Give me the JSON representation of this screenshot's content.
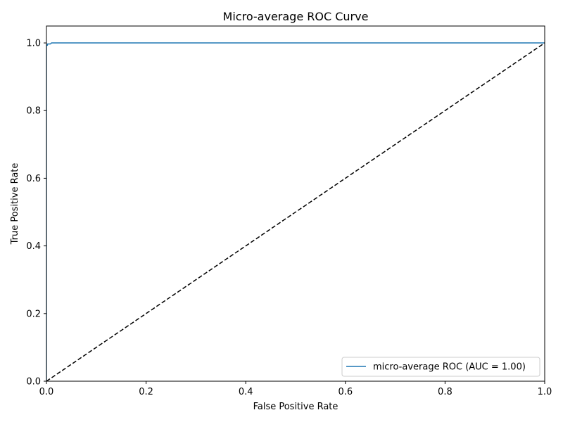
{
  "chart_data": {
    "type": "line",
    "title": "Micro-average ROC Curve",
    "xlabel": "False Positive Rate",
    "ylabel": "True Positive Rate",
    "xlim": [
      0.0,
      1.0
    ],
    "ylim": [
      0.0,
      1.05
    ],
    "xticks": [
      "0.0",
      "0.2",
      "0.4",
      "0.6",
      "0.8",
      "1.0"
    ],
    "yticks": [
      "0.0",
      "0.2",
      "0.4",
      "0.6",
      "0.8",
      "1.0"
    ],
    "grid": false,
    "legend_position": "lower-right",
    "series": [
      {
        "name": "micro-average ROC (AUC = 1.00)",
        "color": "#1f77b4",
        "style": "solid",
        "x": [
          0.0,
          0.0,
          0.002,
          0.002,
          0.008,
          0.01,
          1.0
        ],
        "y": [
          0.0,
          0.993,
          0.993,
          0.997,
          0.997,
          1.0,
          1.0
        ]
      },
      {
        "color": "#000000",
        "style": "dashed",
        "x": [
          0.0,
          1.0
        ],
        "y": [
          0.0,
          1.0
        ]
      }
    ]
  }
}
